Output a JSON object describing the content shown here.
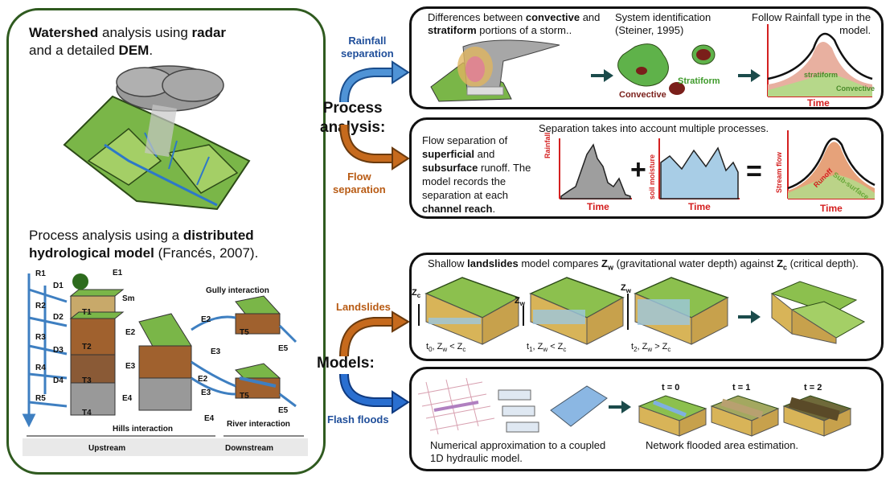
{
  "left": {
    "title_pre": "Watershed",
    "title_mid1": " analysis using ",
    "title_radar": "radar",
    "title_mid2": "and a detailed ",
    "title_dem": "DEM",
    "title_end": ".",
    "process_pre": "Process analysis using a ",
    "process_bold1": "distributed",
    "process_bold2": "hydrological model",
    "process_cite": " (Francés, 2007).",
    "diagram": {
      "r_labels": [
        "R1",
        "R2",
        "R3",
        "R4",
        "R5"
      ],
      "d_labels": [
        "D1",
        "D2",
        "D3",
        "D4"
      ],
      "t_labels": [
        "T1",
        "T2",
        "T3",
        "T4",
        "T5",
        "T5"
      ],
      "e_labels": [
        "E1",
        "E2",
        "E3",
        "E4",
        "E2",
        "E3",
        "E3",
        "E2",
        "E3",
        "E4",
        "E5",
        "E5"
      ],
      "sm": "Sm",
      "gully": "Gully interaction",
      "hills": "Hills interaction",
      "river": "River interaction",
      "upstream": "Upstream",
      "downstream": "Downstream"
    }
  },
  "middle": {
    "process_analysis": "Process\nanalysis:",
    "models": "Models:",
    "rainfall_sep": "Rainfall\nseparation",
    "flow_sep": "Flow\nseparation",
    "landslides": "Landslides",
    "flash_floods": "Flash floods"
  },
  "rainfall": {
    "desc_pre": "Differences between ",
    "desc_b1": "convective",
    "desc_mid": " and",
    "desc_b2": "stratiform",
    "desc_end": " portions of a storm..",
    "sysid": "System identification\n(Steiner, 1995)",
    "stratiform": "Stratiform",
    "convective": "Convective",
    "follow": "Follow Rainfall type in the\nmodel.",
    "chart_stratiform": "stratiform",
    "chart_convective": "Convective",
    "time": "Time"
  },
  "flow": {
    "desc_l1": "Flow separation of",
    "desc_b1": "superficial",
    "desc_l2": " and",
    "desc_b2": "subsurface",
    "desc_l3": " runoff. The",
    "desc_l4": "model records the",
    "desc_l5": "separation at each",
    "desc_b3": "channel reach",
    "desc_end": ".",
    "header": "Separation takes into account multiple processes.",
    "rainfall_axis": "Rainfall",
    "soil_axis": "soil moisture",
    "stream_axis": "Stream flow",
    "runoff": "Runoff",
    "sub": "Sub-surface",
    "time": "Time",
    "plus": "+",
    "equals": "="
  },
  "landslides": {
    "h_pre": "Shallow ",
    "h_b": "landslides",
    "h_mid": " model compares ",
    "zw": "Z",
    "w": "w",
    "h_mid2": " (gravitational water depth) against  ",
    "zc": "Z",
    "c": "c",
    "h_end": " (critical depth).",
    "s0": "t",
    "s0sub": "0",
    "s0rest": ", Z",
    "s0w": "w",
    "s0op": " < Z",
    "s0c": "c",
    "s1sub": "1",
    "s1op": " < Z",
    "s2sub": "2",
    "s2op": " > Z"
  },
  "floods": {
    "t0": "t = 0",
    "t1": "t = 1",
    "t2": "t = 2",
    "numerical": "Numerical approximation to a coupled\n1D hydraulic model.",
    "network": "Network flooded area estimation."
  }
}
